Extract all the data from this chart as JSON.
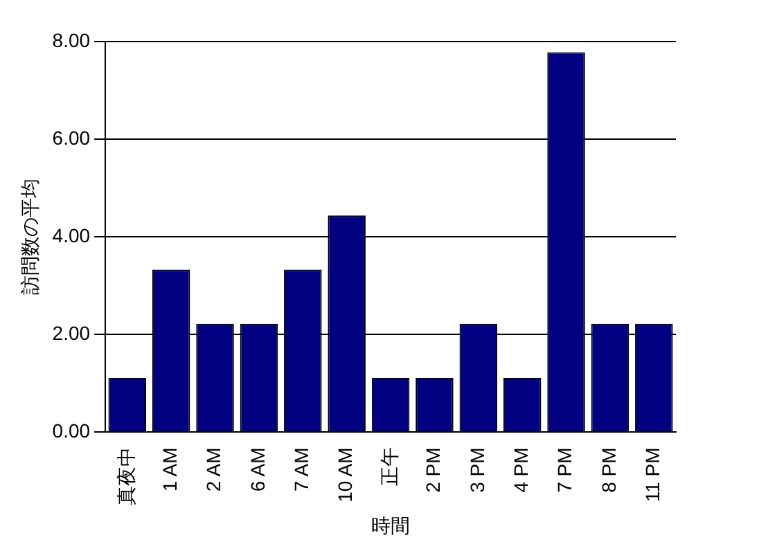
{
  "chart_data": {
    "type": "bar",
    "xlabel": "時間",
    "ylabel": "訪問数の平均",
    "categories": [
      "真夜中",
      "1 AM",
      "2 AM",
      "6 AM",
      "7 AM",
      "10 AM",
      "正午",
      "2 PM",
      "3 PM",
      "4 PM",
      "7 PM",
      "8 PM",
      "11 PM"
    ],
    "values": [
      1.11,
      3.33,
      2.22,
      2.22,
      3.33,
      4.44,
      1.11,
      1.11,
      2.22,
      1.11,
      7.78,
      2.22,
      2.22
    ],
    "color": "#000080",
    "ylim": [
      0,
      8
    ],
    "yticks": [
      {
        "value": 0,
        "label": "0.00"
      },
      {
        "value": 2,
        "label": "2.00"
      },
      {
        "value": 4,
        "label": "4.00"
      },
      {
        "value": 6,
        "label": "6.00"
      },
      {
        "value": 8,
        "label": "8.00"
      }
    ],
    "grid": "y",
    "legend": false
  }
}
